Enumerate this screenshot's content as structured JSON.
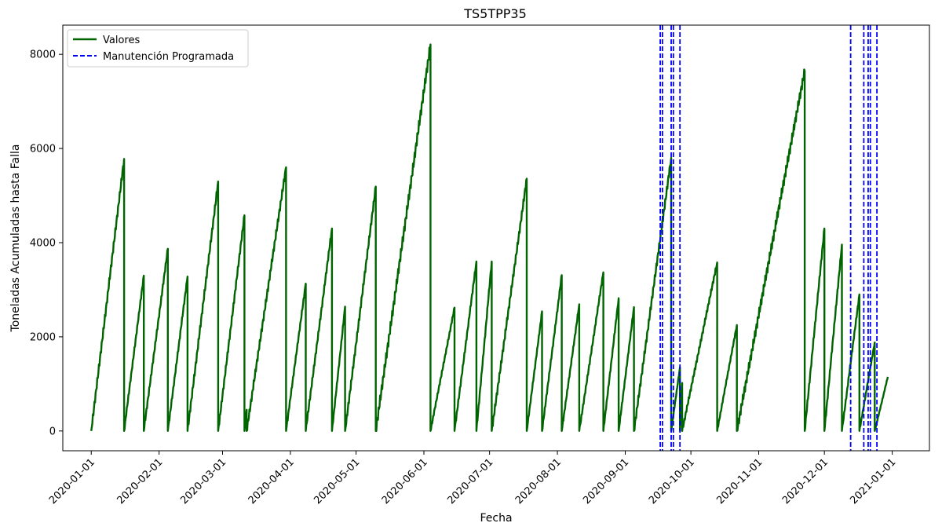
{
  "chart_data": {
    "type": "line",
    "title": "TS5TPP35",
    "xlabel": "Fecha",
    "ylabel": "Toneladas Acumuladas hasta Falla",
    "xlim": [
      "2019-12-19",
      "2021-01-18"
    ],
    "ylim": [
      -420,
      8620
    ],
    "yticks": [
      0,
      2000,
      4000,
      6000,
      8000
    ],
    "xticks": [
      "2020-01-01",
      "2020-02-01",
      "2020-03-01",
      "2020-04-01",
      "2020-05-01",
      "2020-06-01",
      "2020-07-01",
      "2020-08-01",
      "2020-09-01",
      "2020-10-01",
      "2020-11-01",
      "2020-12-01",
      "2021-01-01"
    ],
    "legend_position": "top-left",
    "series": [
      {
        "name": "Valores",
        "color": "#006400",
        "cycles": [
          {
            "start": "2020-01-01",
            "end": "2020-01-16",
            "peak": 5780
          },
          {
            "start": "2020-01-16",
            "end": "2020-01-25",
            "peak": 3300
          },
          {
            "start": "2020-01-25",
            "end": "2020-02-05",
            "peak": 3870
          },
          {
            "start": "2020-02-05",
            "end": "2020-02-14",
            "peak": 3280
          },
          {
            "start": "2020-02-14",
            "end": "2020-02-28",
            "peak": 5300
          },
          {
            "start": "2020-02-28",
            "end": "2020-03-11",
            "peak": 4580
          },
          {
            "start": "2020-03-11",
            "end": "2020-03-12",
            "peak": 450
          },
          {
            "start": "2020-03-12",
            "end": "2020-03-30",
            "peak": 5600
          },
          {
            "start": "2020-03-30",
            "end": "2020-04-08",
            "peak": 3130
          },
          {
            "start": "2020-04-08",
            "end": "2020-04-20",
            "peak": 4300
          },
          {
            "start": "2020-04-20",
            "end": "2020-04-26",
            "peak": 2640
          },
          {
            "start": "2020-04-26",
            "end": "2020-05-10",
            "peak": 5190
          },
          {
            "start": "2020-05-10",
            "end": "2020-06-04",
            "peak": 8210
          },
          {
            "start": "2020-06-04",
            "end": "2020-06-15",
            "peak": 2620
          },
          {
            "start": "2020-06-15",
            "end": "2020-06-25",
            "peak": 3600
          },
          {
            "start": "2020-06-25",
            "end": "2020-07-02",
            "peak": 3600
          },
          {
            "start": "2020-07-02",
            "end": "2020-07-18",
            "peak": 5360
          },
          {
            "start": "2020-07-18",
            "end": "2020-07-25",
            "peak": 2540
          },
          {
            "start": "2020-07-25",
            "end": "2020-08-03",
            "peak": 3310
          },
          {
            "start": "2020-08-03",
            "end": "2020-08-11",
            "peak": 2690
          },
          {
            "start": "2020-08-11",
            "end": "2020-08-22",
            "peak": 3370
          },
          {
            "start": "2020-08-22",
            "end": "2020-08-29",
            "peak": 2820
          },
          {
            "start": "2020-08-29",
            "end": "2020-09-05",
            "peak": 2630
          },
          {
            "start": "2020-09-05",
            "end": "2020-09-22",
            "peak": 5800
          },
          {
            "start": "2020-09-22",
            "end": "2020-09-26",
            "peak": 1350
          },
          {
            "start": "2020-09-26",
            "end": "2020-09-27",
            "peak": 1020
          },
          {
            "start": "2020-09-27",
            "end": "2020-10-13",
            "peak": 3580
          },
          {
            "start": "2020-10-13",
            "end": "2020-10-22",
            "peak": 2250
          },
          {
            "start": "2020-10-22",
            "end": "2020-11-22",
            "peak": 7650
          },
          {
            "start": "2020-11-22",
            "end": "2020-12-01",
            "peak": 4300
          },
          {
            "start": "2020-12-01",
            "end": "2020-12-09",
            "peak": 3960
          },
          {
            "start": "2020-12-09",
            "end": "2020-12-17",
            "peak": 2900
          },
          {
            "start": "2020-12-17",
            "end": "2020-12-24",
            "peak": 1880
          },
          {
            "start": "2020-12-24",
            "end": "2020-12-30",
            "peak": 1150
          }
        ]
      },
      {
        "name": "Manutención Programada",
        "color": "#0000ff",
        "style": "dashed",
        "dates": [
          "2020-09-17",
          "2020-09-18",
          "2020-09-22",
          "2020-09-23",
          "2020-09-26",
          "2020-12-13",
          "2020-12-19",
          "2020-12-21",
          "2020-12-22",
          "2020-12-25"
        ]
      }
    ]
  }
}
